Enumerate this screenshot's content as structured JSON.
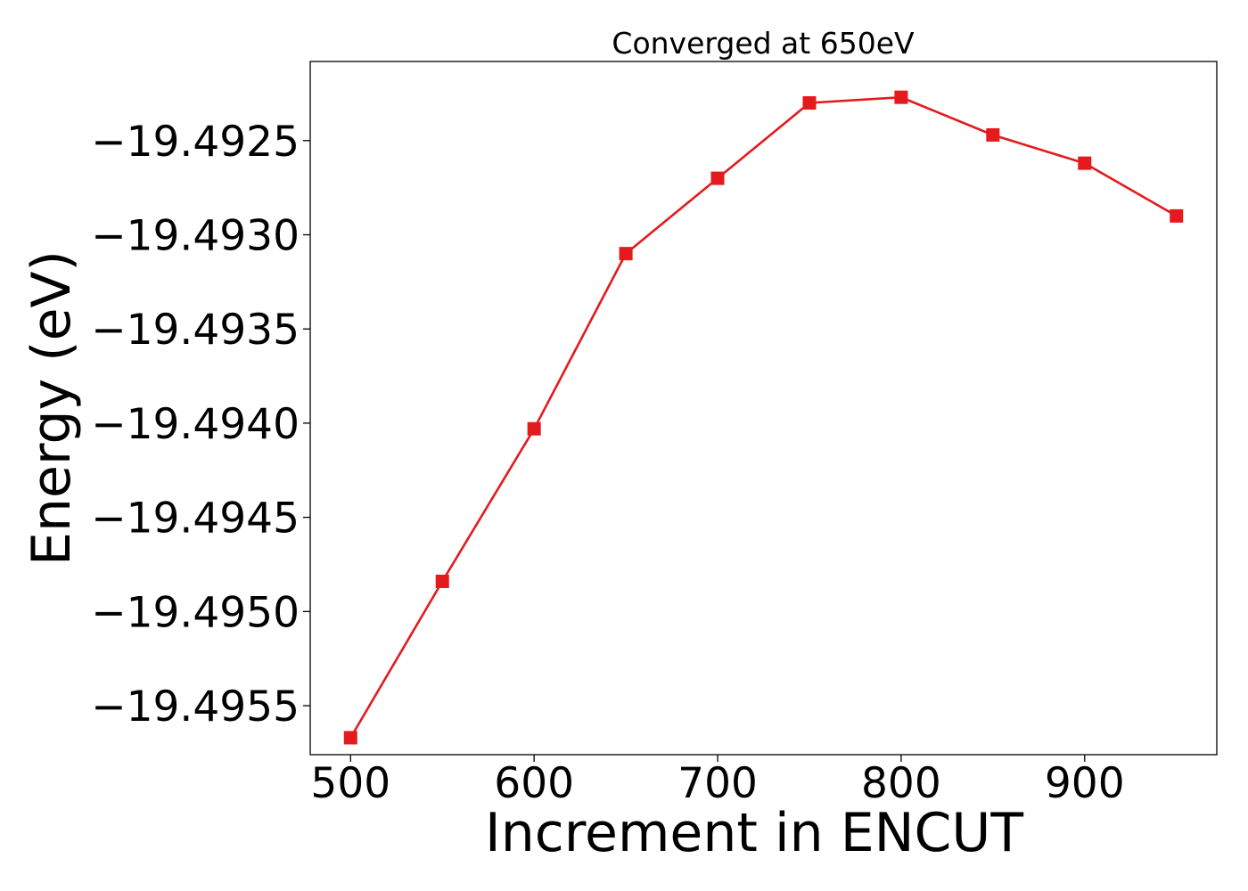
{
  "chart_data": {
    "type": "line",
    "title": "Converged at 650eV",
    "xlabel": "Increment in ENCUT",
    "ylabel": "Energy (eV)",
    "x": [
      500,
      550,
      600,
      650,
      700,
      750,
      800,
      850,
      900,
      950
    ],
    "series": [
      {
        "values": [
          -19.49567,
          -19.49484,
          -19.49403,
          -19.4931,
          -19.4927,
          -19.4923,
          -19.49227,
          -19.49247,
          -19.49262,
          -19.4929
        ],
        "color": "#e41a1c",
        "marker": "square"
      }
    ],
    "xlim": [
      478,
      972
    ],
    "ylim": [
      -19.49576,
      -19.49208
    ],
    "xticks": [
      500,
      600,
      700,
      800,
      900
    ],
    "xtick_labels": [
      "500",
      "600",
      "700",
      "800",
      "900"
    ],
    "yticks": [
      -19.4955,
      -19.495,
      -19.4945,
      -19.494,
      -19.4935,
      -19.493,
      -19.4925
    ],
    "ytick_labels": [
      "−19.4955",
      "−19.4950",
      "−19.4945",
      "−19.4940",
      "−19.4935",
      "−19.4930",
      "−19.4925"
    ],
    "grid": false,
    "legend": "none"
  }
}
